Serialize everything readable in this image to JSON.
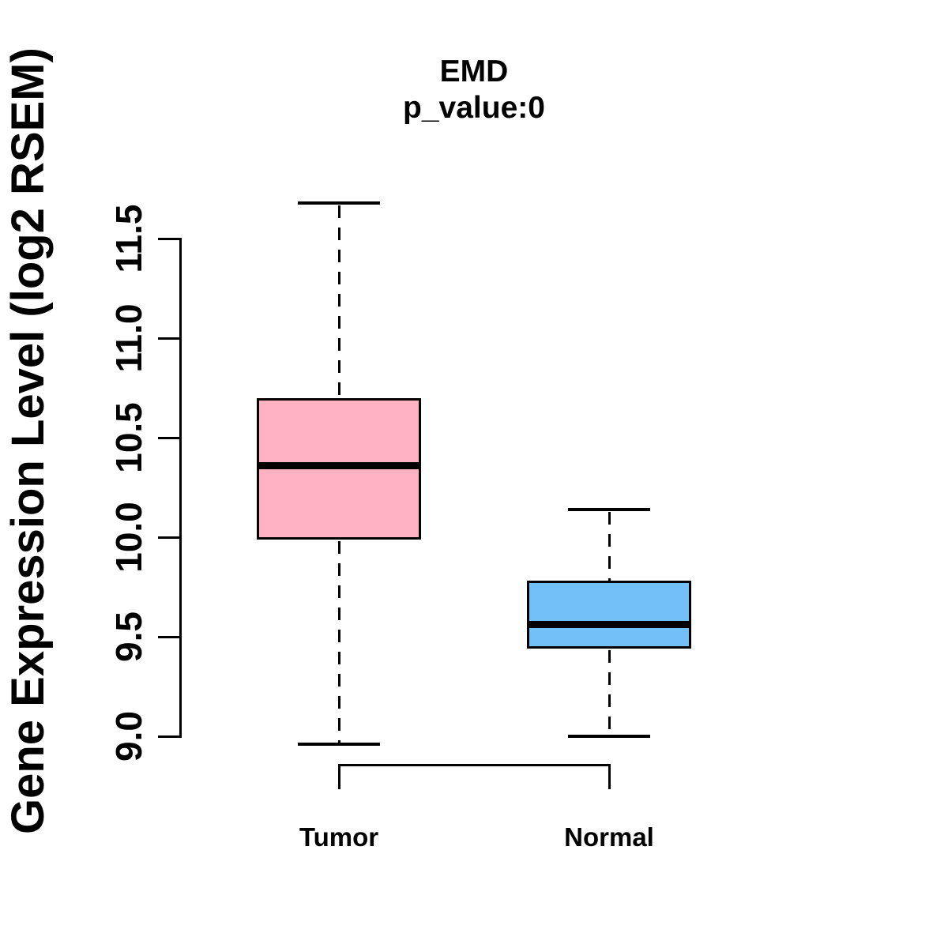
{
  "title": "EMD",
  "subtitle": "p_value:0",
  "chart_data": {
    "type": "boxplot",
    "title": "EMD",
    "subtitle": "p_value:0",
    "xlabel": "",
    "ylabel": "Gene Expression Level (log2 RSEM)",
    "categories": [
      "Tumor",
      "Normal"
    ],
    "ylim": [
      9.0,
      11.5
    ],
    "yticks": [
      "9.0",
      "9.5",
      "10.0",
      "10.5",
      "11.0",
      "11.5"
    ],
    "grid": false,
    "legend": "none",
    "axis_color": "#000000",
    "series": [
      {
        "name": "Tumor",
        "fill_color": "#FFB3C2",
        "whisker_low": 8.96,
        "q1": 9.99,
        "median": 10.36,
        "q3": 10.7,
        "whisker_high": 11.68,
        "outliers": []
      },
      {
        "name": "Normal",
        "fill_color": "#73BFF7",
        "whisker_low": 9.0,
        "q1": 9.44,
        "median": 9.56,
        "q3": 9.78,
        "whisker_high": 10.14,
        "outliers": []
      }
    ]
  }
}
